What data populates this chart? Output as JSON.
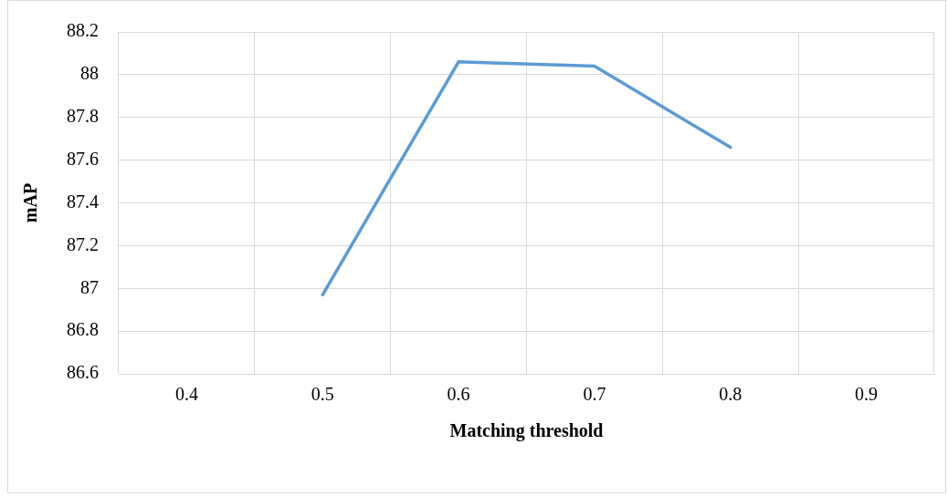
{
  "chart_data": {
    "type": "line",
    "xlabel": "Matching threshold",
    "ylabel": "mAP",
    "categories": [
      "0.4",
      "0.5",
      "0.6",
      "0.7",
      "0.8",
      "0.9"
    ],
    "series": [
      {
        "color": "#5b9bd5",
        "values": [
          null,
          86.97,
          88.06,
          88.04,
          87.66,
          null
        ]
      }
    ],
    "ylim": [
      86.6,
      88.2
    ],
    "yticks": [
      86.6,
      86.8,
      87,
      87.2,
      87.4,
      87.6,
      87.8,
      88,
      88.2
    ],
    "grid": true,
    "legend": false,
    "marker": "none",
    "line_style": "solid"
  }
}
